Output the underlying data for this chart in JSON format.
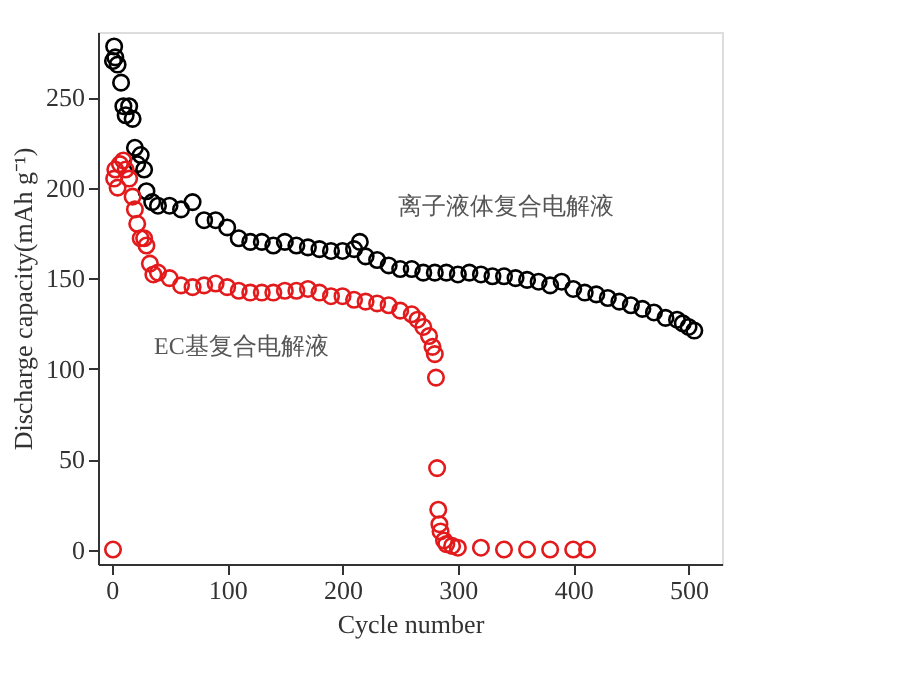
{
  "chart_data": {
    "type": "scatter",
    "xlabel": "Cycle number",
    "ylabel": "Discharge capacity(mAh g⁻¹)",
    "xlim": [
      -12,
      529
    ],
    "ylim": [
      -8,
      286
    ],
    "xticks": [
      0,
      100,
      200,
      300,
      400,
      500
    ],
    "yticks": [
      0,
      50,
      100,
      150,
      200,
      250
    ],
    "grid": false,
    "marker": "circle",
    "series": [
      {
        "name": "离子液体复合电解液",
        "color": "#000000",
        "x": [
          1,
          2,
          3,
          5,
          8,
          10,
          12,
          15,
          18,
          20,
          22,
          25,
          28,
          30,
          35,
          40,
          50,
          60,
          70,
          80,
          90,
          100,
          110,
          120,
          130,
          140,
          150,
          160,
          170,
          180,
          190,
          200,
          210,
          215,
          220,
          230,
          240,
          250,
          260,
          270,
          280,
          290,
          300,
          310,
          320,
          330,
          340,
          350,
          360,
          370,
          380,
          390,
          400,
          410,
          420,
          430,
          440,
          450,
          460,
          470,
          480,
          490,
          495,
          500,
          505
        ],
        "values": [
          270,
          278,
          272,
          268,
          258,
          245,
          240,
          245,
          238,
          222,
          213,
          218,
          210,
          198,
          192,
          190,
          190,
          188,
          192,
          182,
          182,
          178,
          172,
          170,
          170,
          168,
          170,
          168,
          167,
          166,
          165,
          165,
          166,
          170,
          162,
          160,
          157,
          155,
          155,
          153,
          153,
          153,
          152,
          153,
          152,
          151,
          151,
          150,
          149,
          148,
          146,
          148,
          144,
          142,
          141,
          139,
          137,
          135,
          133,
          131,
          128,
          127,
          125,
          123,
          121
        ]
      },
      {
        "name": "EC基复合电解液",
        "color": "#e31a1c",
        "x": [
          1,
          2,
          3,
          5,
          7,
          10,
          12,
          15,
          18,
          20,
          22,
          25,
          28,
          30,
          33,
          36,
          40,
          50,
          60,
          70,
          80,
          90,
          100,
          110,
          120,
          130,
          140,
          150,
          160,
          170,
          180,
          190,
          200,
          210,
          220,
          230,
          240,
          250,
          260,
          265,
          270,
          275,
          278,
          280,
          281,
          282,
          283,
          284,
          285,
          288,
          290,
          295,
          300,
          320,
          340,
          360,
          380,
          400,
          412
        ],
        "values": [
          0,
          205,
          210,
          200,
          213,
          215,
          210,
          205,
          195,
          188,
          180,
          172,
          172,
          168,
          158,
          152,
          153,
          150,
          146,
          145,
          146,
          147,
          145,
          143,
          142,
          142,
          142,
          143,
          143,
          144,
          142,
          140,
          140,
          138,
          137,
          136,
          135,
          132,
          130,
          127,
          123,
          118,
          112,
          108,
          95,
          45,
          22,
          14,
          10,
          5,
          3,
          2,
          1,
          1,
          0,
          0,
          0,
          0,
          0
        ]
      }
    ]
  }
}
